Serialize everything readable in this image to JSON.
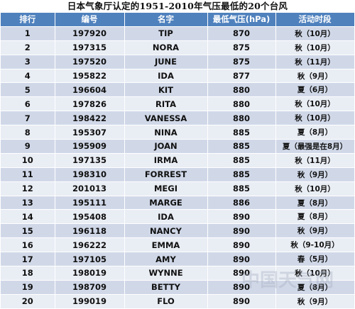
{
  "title": "日本气象厅认定的1951-2010年气压最低的20个台风",
  "columns": [
    "排行",
    "编号",
    "名字",
    "最低气压(hPa)",
    "活动时段"
  ],
  "rows": [
    [
      "1",
      "197920",
      "TIP",
      "870",
      "秋（10月）"
    ],
    [
      "2",
      "197315",
      "NORA",
      "875",
      "秋（10月）"
    ],
    [
      "3",
      "197520",
      "JUNE",
      "875",
      "秋（11月）"
    ],
    [
      "4",
      "195822",
      "IDA",
      "877",
      "秋（9月）"
    ],
    [
      "5",
      "196604",
      "KIT",
      "880",
      "夏（6月）"
    ],
    [
      "6",
      "197826",
      "RITA",
      "880",
      "秋（10月）"
    ],
    [
      "7",
      "198422",
      "VANESSA",
      "880",
      "秋（10月）"
    ],
    [
      "8",
      "195307",
      "NINA",
      "885",
      "夏（8月）"
    ],
    [
      "9",
      "195909",
      "JOAN",
      "885",
      "夏（最强是在8月）"
    ],
    [
      "10",
      "197135",
      "IRMA",
      "885",
      "秋（11月）"
    ],
    [
      "11",
      "198310",
      "FORREST",
      "885",
      "秋（9月）"
    ],
    [
      "12",
      "201013",
      "MEGI",
      "885",
      "秋（10月）"
    ],
    [
      "13",
      "195111",
      "MARGE",
      "886",
      "夏（8月）"
    ],
    [
      "14",
      "195408",
      "IDA",
      "890",
      "夏（8月）"
    ],
    [
      "15",
      "196118",
      "NANCY",
      "890",
      "秋（9月）"
    ],
    [
      "16",
      "196222",
      "EMMA",
      "890",
      "秋（9-10月）"
    ],
    [
      "17",
      "197105",
      "AMY",
      "890",
      "春（5月）"
    ],
    [
      "18",
      "198019",
      "WYNNE",
      "890",
      "秋（10月）"
    ],
    [
      "19",
      "198709",
      "BETTY",
      "890",
      "夏（8月）"
    ],
    [
      "20",
      "199019",
      "FLO",
      "890",
      "秋（9月）"
    ]
  ],
  "watermark": "中国天气网"
}
